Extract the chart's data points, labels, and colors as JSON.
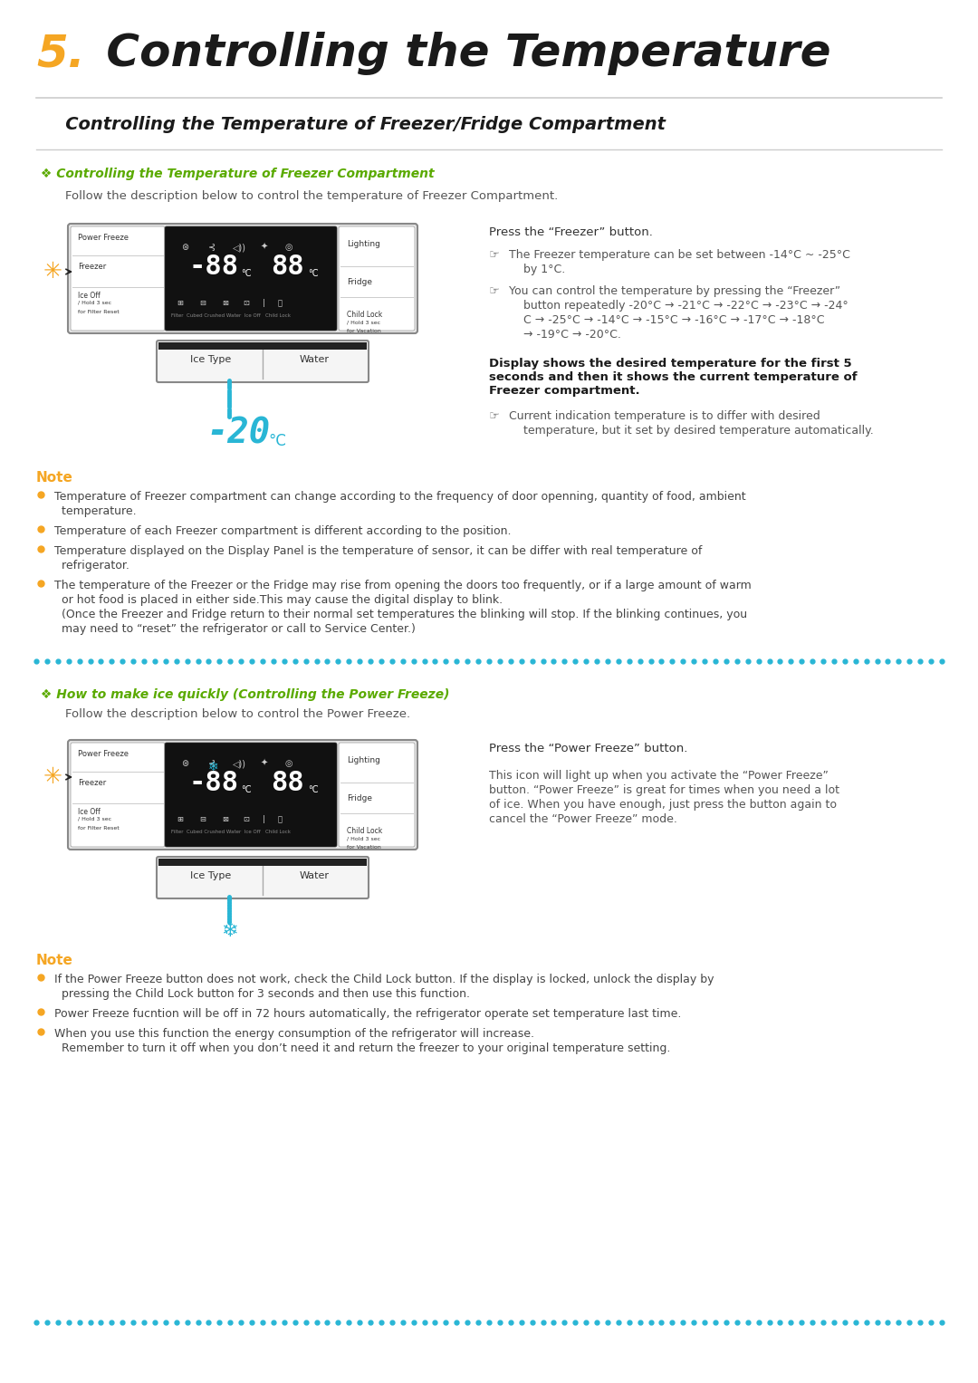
{
  "title_number": "5.",
  "title_number_color": "#f5a623",
  "title_text": " Controlling the Temperature",
  "title_color": "#1a1a1a",
  "subtitle": "   Controlling the Temperature of Freezer/Fridge Compartment",
  "section1_heading": " ❖ Controlling the Temperature of Freezer Compartment",
  "section1_heading_color": "#5aaa00",
  "section1_intro": "    Follow the description below to control the temperature of Freezer Compartment.",
  "section1_press": "Press the “Freezer” button.",
  "section1_b1a": "The Freezer temperature can be set between -14°C ~ -25°C",
  "section1_b1b": "    by 1°C.",
  "section1_b2a": "You can control the temperature by pressing the “Freezer”",
  "section1_b2b": "    button repeatedly -20°C → -21°C → -22°C → -23°C → -24°",
  "section1_b2c": "    C → -25°C → -14°C → -15°C → -16°C → -17°C → -18°C",
  "section1_b2d": "    → -19°C → -20°C.",
  "section1_bold": "Display shows the desired temperature for the first 5\nseconds and then it shows the current temperature of\nFreezer compartment.",
  "section1_b3a": "Current indication temperature is to differ with desired",
  "section1_b3b": "    temperature, but it set by desired temperature automatically.",
  "note1_heading": "Note",
  "note1_heading_color": "#f5a623",
  "note1_b1": "Temperature of Freezer compartment can change according to the frequency of door openning, quantity of food, ambient",
  "note1_b1b": "  temperature.",
  "note1_b2": "Temperature of each Freezer compartment is different according to the position.",
  "note1_b3": "Temperature displayed on the Display Panel is the temperature of sensor, it can be differ with real temperature of",
  "note1_b3b": "  refrigerator.",
  "note1_b4": "The temperature of the Freezer or the Fridge may rise from opening the doors too frequently, or if a large amount of warm",
  "note1_b4b": "  or hot food is placed in either side.This may cause the digital display to blink.",
  "note1_b4c": "  (Once the Freezer and Fridge return to their normal set temperatures the blinking will stop. If the blinking continues, you",
  "note1_b4d": "  may need to “reset” the refrigerator or call to Service Center.)",
  "section2_heading": " ❖ How to make ice quickly (Controlling the Power Freeze)",
  "section2_heading_color": "#5aaa00",
  "section2_intro": "    Follow the description below to control the Power Freeze.",
  "section2_press": "Press the “Power Freeze” button.",
  "section2_text_a": "This icon will light up when you activate the “Power Freeze”",
  "section2_text_b": "button. “Power Freeze” is great for times when you need a lot",
  "section2_text_c": "of ice. When you have enough, just press the button again to",
  "section2_text_d": "cancel the “Power Freeze” mode.",
  "note2_heading": "Note",
  "note2_heading_color": "#f5a623",
  "note2_b1a": "If the Power Freeze button does not work, check the Child Lock button. If the display is locked, unlock the display by",
  "note2_b1b": "  pressing the Child Lock button for 3 seconds and then use this function.",
  "note2_b2": "Power Freeze fucntion will be off in 72 hours automatically, the refrigerator operate set temperature last time.",
  "note2_b3a": "When you use this function the energy consumption of the refrigerator will increase.",
  "note2_b3b": "  Remember to turn it off when you don’t need it and return the freezer to your original temperature setting.",
  "bg_color": "#ffffff",
  "text_color": "#444444",
  "dark_text": "#222222",
  "separator_color": "#aaaaaa",
  "dotted_color": "#29b6d5",
  "bullet_dot_color": "#f5a623"
}
